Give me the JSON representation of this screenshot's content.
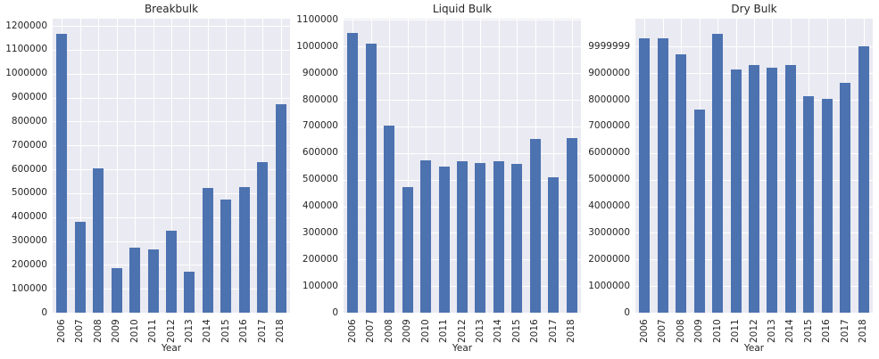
{
  "style": {
    "figure_background": "#ffffff",
    "plot_background": "#eaeaf2",
    "grid_color": "#ffffff",
    "bar_color": "#4c72b0",
    "text_color": "#262626"
  },
  "chart_data": [
    {
      "type": "bar",
      "title": "Breakbulk",
      "xlabel": "Year",
      "ylabel": "",
      "grid": true,
      "legend": false,
      "categories": [
        "2006",
        "2007",
        "2008",
        "2009",
        "2010",
        "2011",
        "2012",
        "2013",
        "2014",
        "2015",
        "2016",
        "2017",
        "2018"
      ],
      "values": [
        1168000,
        380000,
        603000,
        185000,
        274000,
        263000,
        343000,
        172000,
        521000,
        474000,
        524000,
        630000,
        871000
      ],
      "yticks": [
        0,
        100000,
        200000,
        300000,
        400000,
        500000,
        600000,
        700000,
        800000,
        900000,
        1000000,
        1100000,
        1200000
      ],
      "ylim": [
        0,
        1230000
      ]
    },
    {
      "type": "bar",
      "title": "Liquid Bulk",
      "xlabel": "Year",
      "ylabel": "",
      "grid": true,
      "legend": false,
      "categories": [
        "2006",
        "2007",
        "2008",
        "2009",
        "2010",
        "2011",
        "2012",
        "2013",
        "2014",
        "2015",
        "2016",
        "2017",
        "2018"
      ],
      "values": [
        1050000,
        1013000,
        705000,
        472000,
        574000,
        549000,
        568000,
        562000,
        568000,
        561000,
        652000,
        510000,
        656000
      ],
      "yticks": [
        0,
        100000,
        200000,
        300000,
        400000,
        500000,
        600000,
        700000,
        800000,
        900000,
        1000000,
        1100000
      ],
      "ylim": [
        0,
        1105000
      ]
    },
    {
      "type": "bar",
      "title": "Dry Bulk",
      "xlabel": "Year",
      "ylabel": "",
      "grid": true,
      "legend": false,
      "categories": [
        "2006",
        "2007",
        "2008",
        "2009",
        "2010",
        "2011",
        "2012",
        "2013",
        "2014",
        "2015",
        "2016",
        "2017",
        "2018"
      ],
      "values": [
        10320000,
        10330000,
        9700000,
        7650000,
        10480000,
        9130000,
        9300000,
        9200000,
        9320000,
        8150000,
        8050000,
        8650000,
        10020000
      ],
      "yticks": [
        0,
        1000000,
        2000000,
        3000000,
        4000000,
        5000000,
        6000000,
        7000000,
        8000000,
        9000000,
        9999999
      ],
      "ylim": [
        0,
        11050000
      ]
    }
  ]
}
